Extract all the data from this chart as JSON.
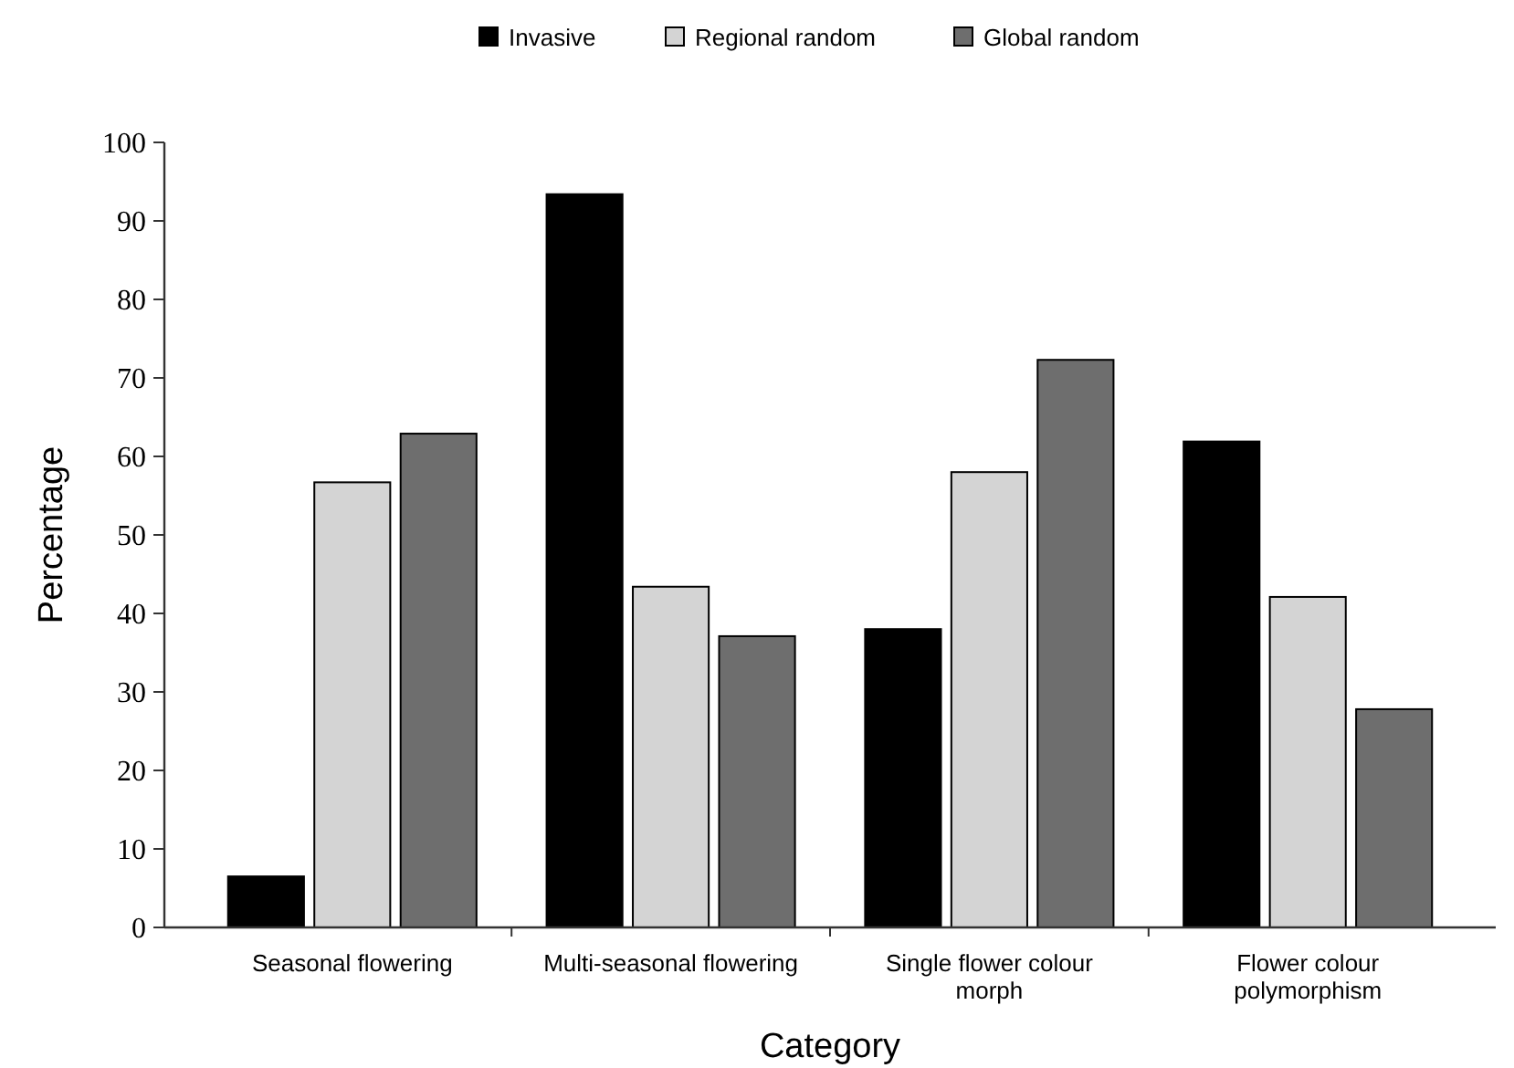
{
  "chart_data": {
    "type": "bar",
    "xlabel": "Category",
    "ylabel": "Percentage",
    "categories": [
      "Seasonal flowering",
      "Multi-seasonal flowering",
      "Single flower colour morph",
      "Flower colour polymorphism"
    ],
    "series": [
      {
        "name": "Invasive",
        "color": "#000000",
        "values": [
          6.5,
          93.4,
          38.0,
          61.9
        ]
      },
      {
        "name": "Regional random",
        "color": "#d4d4d4",
        "values": [
          56.7,
          43.4,
          58.0,
          42.1
        ]
      },
      {
        "name": "Global random",
        "color": "#6e6e6e",
        "values": [
          62.9,
          37.1,
          72.3,
          27.8
        ]
      }
    ],
    "ylim": [
      0,
      100
    ],
    "yticks": [
      0,
      10,
      20,
      30,
      40,
      50,
      60,
      70,
      80,
      90,
      100
    ],
    "grid": false,
    "legend": "top"
  }
}
